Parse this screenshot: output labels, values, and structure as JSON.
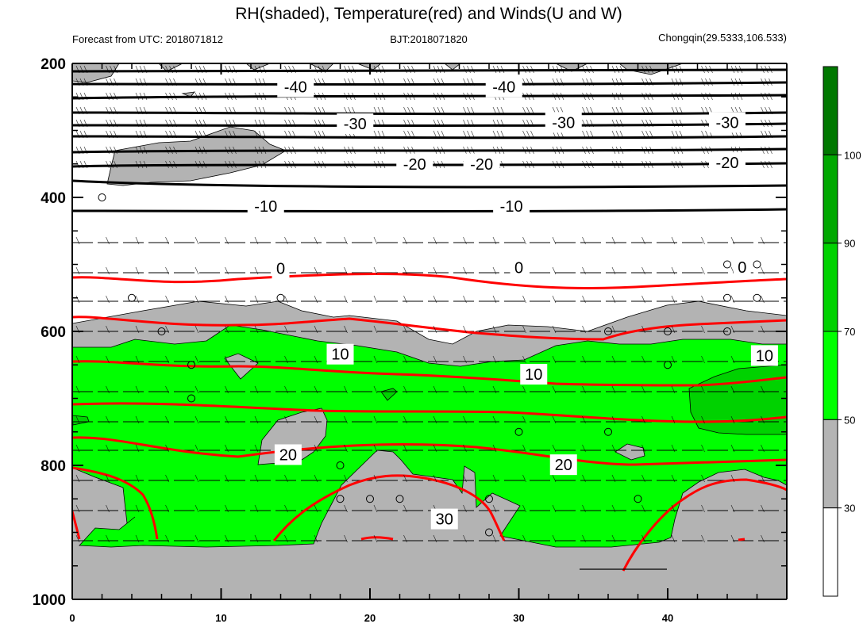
{
  "title": "RH(shaded), Temperature(red) and Winds(U and W)",
  "subtitle_left": "Forecast from UTC: 2018071812",
  "subtitle_center": "BJT:2018071820",
  "subtitle_right": "Chongqin(29.5333,106.533)",
  "chart_data": {
    "type": "contour",
    "x_axis": {
      "range": [
        0,
        48
      ],
      "ticks": [
        0,
        10,
        20,
        30,
        40
      ],
      "tick_labels": [
        "0",
        "10",
        "20",
        "30",
        "40"
      ]
    },
    "y_axis": {
      "range": [
        200,
        1000
      ],
      "reversed": true,
      "ticks": [
        200,
        400,
        600,
        800,
        1000
      ],
      "tick_labels": [
        "200",
        "400",
        "600",
        "800",
        "1000"
      ]
    },
    "colorbar": {
      "levels": [
        30,
        50,
        70,
        90,
        100
      ],
      "level_labels": [
        "30",
        "50",
        "70",
        "90",
        "100"
      ],
      "colors": [
        "#ffffff",
        "#b4b4b4",
        "#00ff00",
        "#00d200",
        "#00a800",
        "#007800"
      ]
    },
    "temperature_levels": [
      -40,
      -30,
      -20,
      -10,
      0,
      10,
      20,
      30
    ],
    "temperature_labels": [
      {
        "text": "-40",
        "x": 15,
        "p": 235
      },
      {
        "text": "-40",
        "x": 29,
        "p": 235
      },
      {
        "text": "-30",
        "x": 19,
        "p": 290
      },
      {
        "text": "-30",
        "x": 33,
        "p": 288
      },
      {
        "text": "-30",
        "x": 44,
        "p": 288
      },
      {
        "text": "-20",
        "x": 23,
        "p": 350
      },
      {
        "text": "-20",
        "x": 27.5,
        "p": 350
      },
      {
        "text": "-20",
        "x": 44,
        "p": 348
      },
      {
        "text": "-10",
        "x": 13,
        "p": 413
      },
      {
        "text": "-10",
        "x": 29.5,
        "p": 413
      },
      {
        "text": "0",
        "x": 14,
        "p": 506
      },
      {
        "text": "0",
        "x": 30,
        "p": 505
      },
      {
        "text": "0",
        "x": 45,
        "p": 504
      },
      {
        "text": "10",
        "x": 18,
        "p": 634
      },
      {
        "text": "10",
        "x": 31,
        "p": 664
      },
      {
        "text": "10",
        "x": 46.5,
        "p": 636
      },
      {
        "text": "20",
        "x": 14.5,
        "p": 784
      },
      {
        "text": "20",
        "x": 33,
        "p": 799
      },
      {
        "text": "30",
        "x": 25,
        "p": 880
      }
    ]
  }
}
